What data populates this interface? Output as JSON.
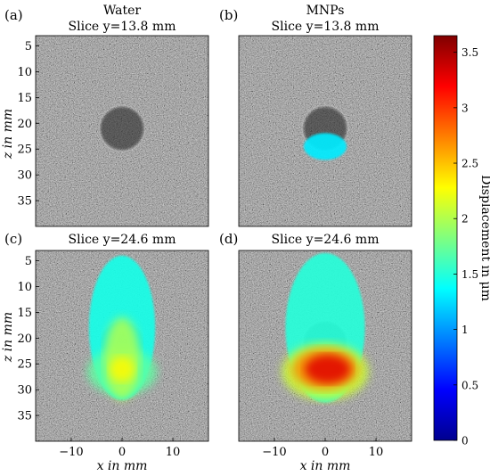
{
  "colors": {
    "colormap": [
      "#00008f",
      "#0000ff",
      "#00ffff",
      "#ffff00",
      "#ff0000",
      "#800000"
    ],
    "background": "#ffffff",
    "ultrasound": "#555555"
  },
  "chart_data": [
    {
      "type": "heatmap",
      "panel": "(a)",
      "title": "Water",
      "subtitle": "Slice y=13.8 mm",
      "ylabel": "z in mm",
      "xlabel": "",
      "xlim": [
        -17,
        17
      ],
      "ylim": [
        40,
        3
      ],
      "xticks": [
        -10,
        0,
        10
      ],
      "yticks": [
        5,
        10,
        15,
        20,
        25,
        30,
        35
      ],
      "inclusion": {
        "x": 0,
        "z": 21,
        "radius": 4.2
      },
      "overlay": []
    },
    {
      "type": "heatmap",
      "panel": "(b)",
      "title": "MNPs",
      "subtitle": "Slice y=13.8 mm",
      "ylabel": "",
      "xlabel": "",
      "xlim": [
        -17,
        17
      ],
      "ylim": [
        40,
        3
      ],
      "xticks": [
        -10,
        0,
        10
      ],
      "yticks": [
        5,
        10,
        15,
        20,
        25,
        30,
        35
      ],
      "inclusion": {
        "x": 0,
        "z": 21,
        "radius": 4.2
      },
      "overlay": [
        {
          "x": 0,
          "z": 24.5,
          "rx": 4.2,
          "rz": 2.6,
          "value": 1.3
        }
      ]
    },
    {
      "type": "heatmap",
      "panel": "(c)",
      "title": "",
      "subtitle": "Slice y=24.6 mm",
      "ylabel": "z in mm",
      "xlabel": "x in mm",
      "xlim": [
        -17,
        17
      ],
      "ylim": [
        40,
        3
      ],
      "xticks": [
        -10,
        0,
        10
      ],
      "yticks": [
        5,
        10,
        15,
        20,
        25,
        30,
        35
      ],
      "inclusion": {
        "x": 0,
        "z": 21,
        "radius": 4.2
      },
      "overlay": [
        {
          "x": 0,
          "z": 18,
          "rx": 6.5,
          "rz": 14,
          "value": 1.45
        },
        {
          "x": 0,
          "z": 26.5,
          "rx": 6.8,
          "rz": 4.5,
          "value": 1.7
        },
        {
          "x": 0,
          "z": 24,
          "rx": 3.5,
          "rz": 8,
          "value": 2.0
        },
        {
          "x": 0,
          "z": 26,
          "rx": 2.5,
          "rz": 2.5,
          "value": 2.3
        }
      ]
    },
    {
      "type": "heatmap",
      "panel": "(d)",
      "title": "",
      "subtitle": "Slice y=24.6 mm",
      "ylabel": "",
      "xlabel": "x in mm",
      "xlim": [
        -17,
        17
      ],
      "ylim": [
        40,
        3
      ],
      "xticks": [
        -10,
        0,
        10
      ],
      "yticks": [
        5,
        10,
        15,
        20,
        25,
        30,
        35
      ],
      "inclusion": {
        "x": 0,
        "z": 21,
        "radius": 4.2
      },
      "overlay": [
        {
          "x": 0,
          "z": 18,
          "rx": 7.8,
          "rz": 14.5,
          "value": 1.5
        },
        {
          "x": 0,
          "z": 26.5,
          "rx": 8.5,
          "rz": 5.5,
          "value": 2.1
        },
        {
          "x": 0,
          "z": 26,
          "rx": 6.5,
          "rz": 4.0,
          "value": 2.7
        },
        {
          "x": 0.5,
          "z": 26,
          "rx": 4.5,
          "rz": 2.8,
          "value": 3.3
        }
      ]
    },
    {
      "type": "colorbar",
      "label": "Displacement in μm",
      "range": [
        0,
        3.65
      ],
      "ticks": [
        0,
        0.5,
        1,
        1.5,
        2,
        2.5,
        3,
        3.5
      ]
    }
  ]
}
